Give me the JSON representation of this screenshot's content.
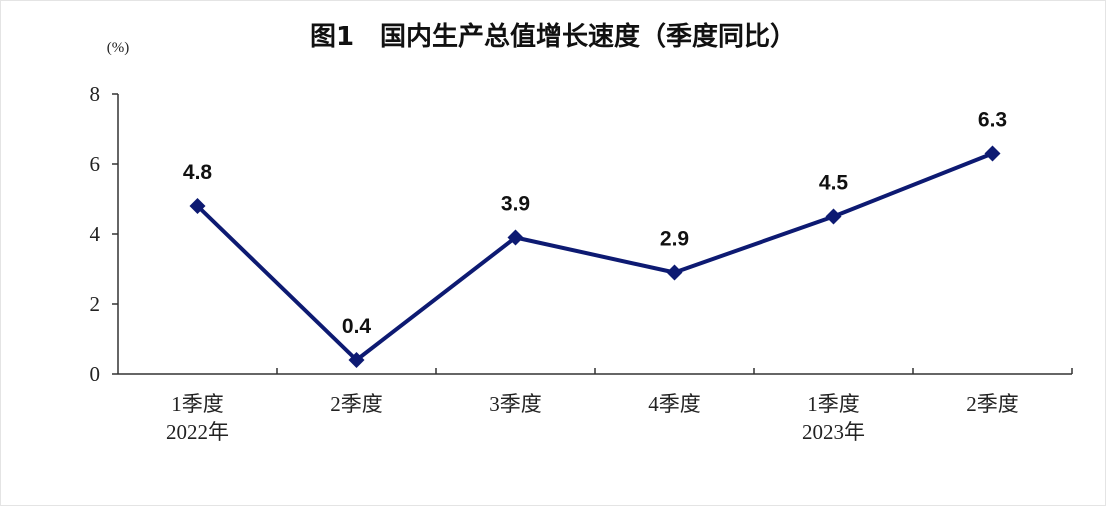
{
  "chart_data": {
    "type": "line",
    "title": "图1　国内生产总值增长速度（季度同比）",
    "y_unit": "(%)",
    "categories": [
      [
        "1季度",
        "2022年"
      ],
      [
        "2季度"
      ],
      [
        "3季度"
      ],
      [
        "4季度"
      ],
      [
        "1季度",
        "2023年"
      ],
      [
        "2季度"
      ]
    ],
    "values": [
      4.8,
      0.4,
      3.9,
      2.9,
      4.5,
      6.3
    ],
    "color": "#0d1a72",
    "ylim": [
      0,
      8
    ],
    "yticks": [
      0,
      2,
      4,
      6,
      8
    ],
    "grid": false
  }
}
